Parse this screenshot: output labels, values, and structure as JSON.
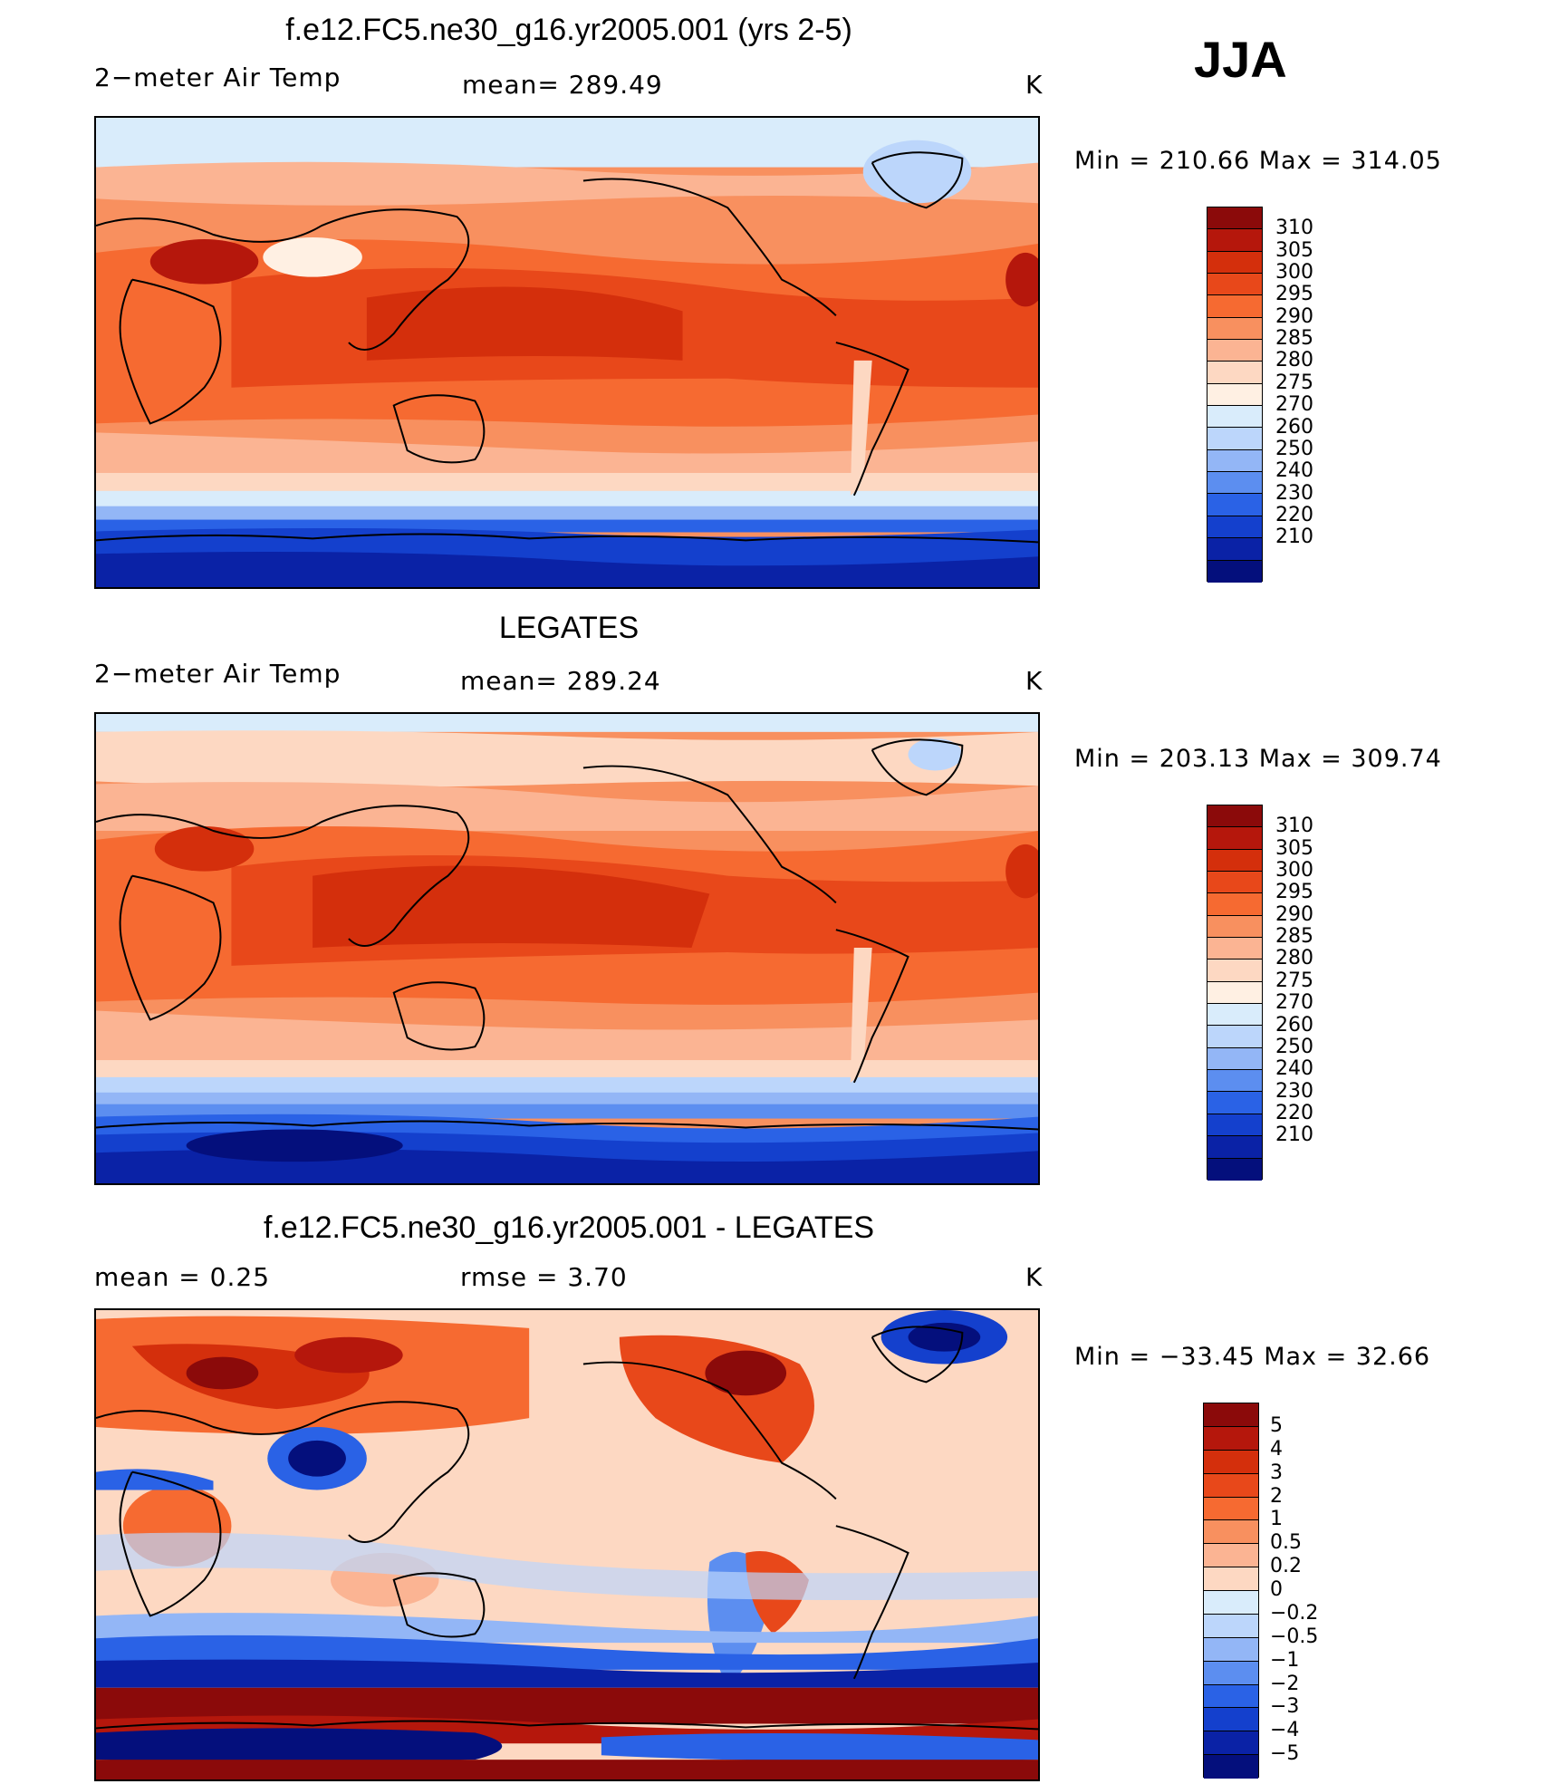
{
  "season": "JJA",
  "panels": [
    {
      "title": "f.e12.FC5.ne30_g16.yr2005.001 (yrs 2-5)",
      "left_label": "2−meter Air Temp",
      "mid_label": "mean=  289.49",
      "units": "K",
      "minmax": "Min  =  210.66  Max  =  314.05",
      "legend_labels": [
        "310",
        "305",
        "300",
        "295",
        "290",
        "285",
        "280",
        "275",
        "270",
        "260",
        "250",
        "240",
        "230",
        "220",
        "210"
      ]
    },
    {
      "title": "LEGATES",
      "left_label": "2−meter Air Temp",
      "mid_label": "mean=  289.24",
      "units": "K",
      "minmax": "Min  =  203.13  Max  =  309.74",
      "legend_labels": [
        "310",
        "305",
        "300",
        "295",
        "290",
        "285",
        "280",
        "275",
        "270",
        "260",
        "250",
        "240",
        "230",
        "220",
        "210"
      ]
    },
    {
      "title": "f.e12.FC5.ne30_g16.yr2005.001 - LEGATES",
      "left_label": "mean  =     0.25",
      "mid_label": "rmse  =     3.70",
      "units": "K",
      "minmax": "Min  =  −33.45  Max  =    32.66",
      "legend_labels": [
        "5",
        "4",
        "3",
        "2",
        "1",
        "0.5",
        "0.2",
        "0",
        "−0.2",
        "−0.5",
        "−1",
        "−2",
        "−3",
        "−4",
        "−5"
      ]
    }
  ],
  "colors": {
    "abs_scale": [
      "#8b0a0a",
      "#b5170c",
      "#d42f0c",
      "#e8481a",
      "#f66a31",
      "#f8905f",
      "#fbb493",
      "#fdd8c2",
      "#fff0e3",
      "#d9ecfb",
      "#bcd6fb",
      "#93b6f6",
      "#5c8ef0",
      "#2a62e6",
      "#1440cd",
      "#0a22a6",
      "#040f7c"
    ],
    "diff_scale": [
      "#8b0a0a",
      "#b5170c",
      "#d42f0c",
      "#e8481a",
      "#f66a31",
      "#f8905f",
      "#fbb493",
      "#fdd8c2",
      "#d9ecfb",
      "#bcd6fb",
      "#93b6f6",
      "#5c8ef0",
      "#2a62e6",
      "#1440cd",
      "#0a22a6",
      "#040f7c"
    ]
  }
}
